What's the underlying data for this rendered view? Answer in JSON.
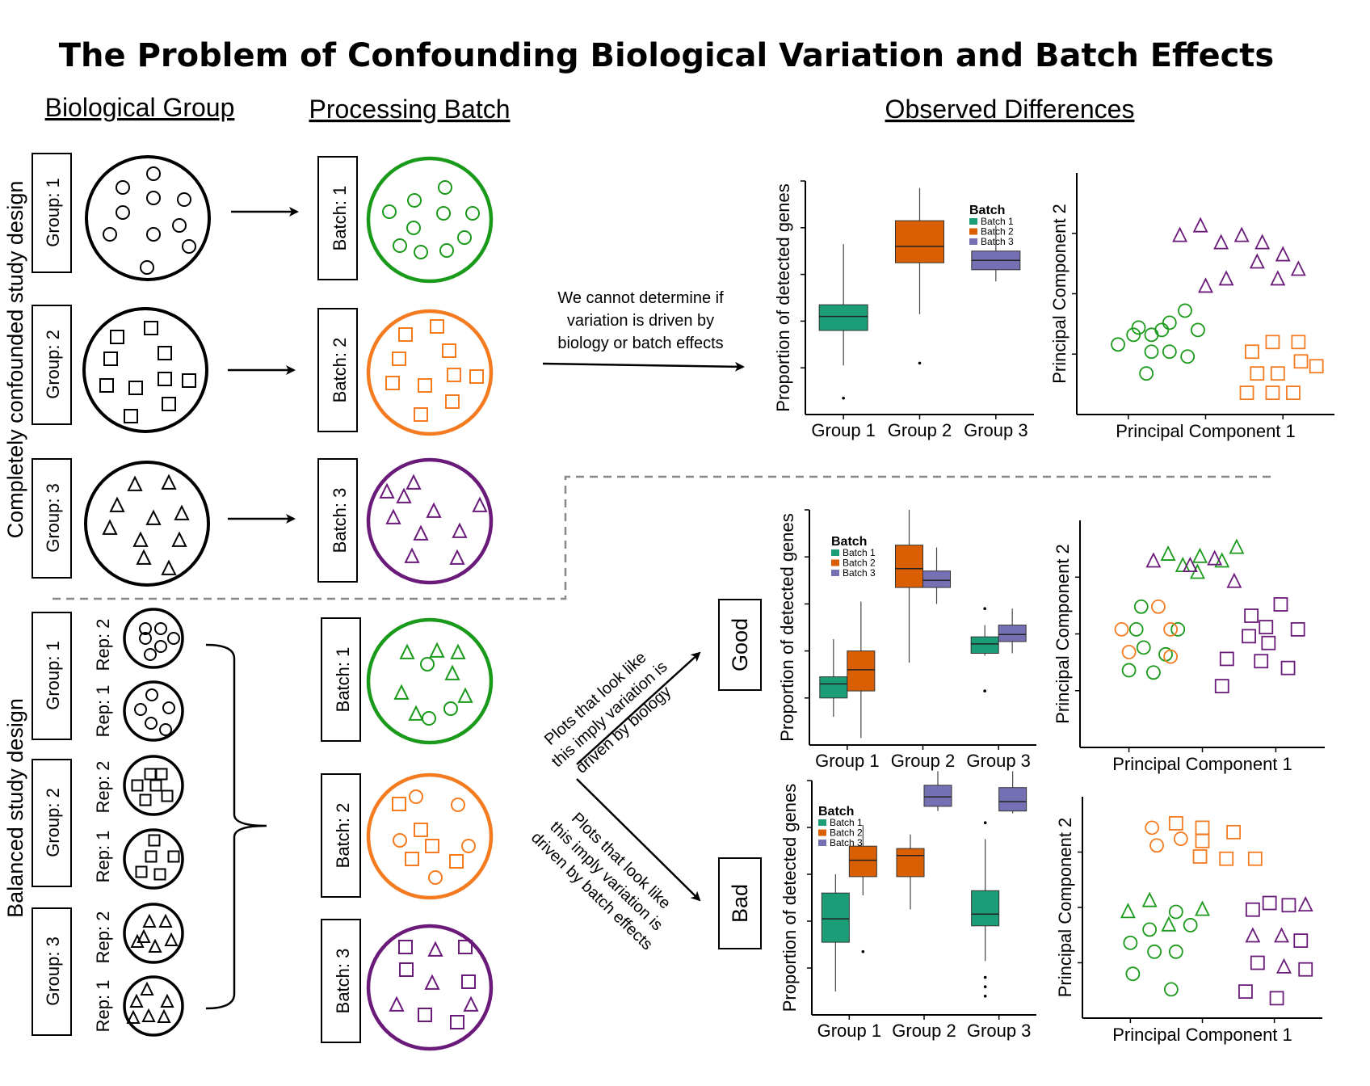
{
  "title": "The Problem of Confounding Biological Variation and Batch Effects",
  "headers": {
    "biological_group": "Biological Group",
    "processing_batch": "Processing Batch",
    "observed_differences": "Observed Differences"
  },
  "designs": {
    "confounded": "Completely confounded study design",
    "balanced": "Balanced study design"
  },
  "group_labels": [
    "Group: 1",
    "Group: 2",
    "Group: 3"
  ],
  "batch_labels": [
    "Batch: 1",
    "Batch: 2",
    "Batch: 3"
  ],
  "rep_labels": [
    "Rep: 2",
    "Rep: 1",
    "Rep: 2",
    "Rep: 1",
    "Rep: 2",
    "Rep: 1"
  ],
  "notes": {
    "confounded_line1": "We cannot determine if",
    "confounded_line2": "variation is driven by",
    "confounded_line3": "biology or batch effects",
    "good_line1": "Plots that look like",
    "good_line2": "this imply variation is",
    "good_line3": "driven by biology",
    "bad_line1": "Plots that look like",
    "bad_line2": "this imply variation is",
    "bad_line3": "driven by batch effects"
  },
  "outcomes": {
    "good": "Good",
    "bad": "Bad"
  },
  "colors": {
    "batch1": "#1b9e77",
    "batch2": "#d95f02",
    "batch3": "#7570b3",
    "green": "#1a9a1a",
    "orange": "#f47b20",
    "purple": "#6a1b7a"
  },
  "chart_data": [
    {
      "type": "box",
      "panel": "confounded",
      "ylabel": "Proportion of detected genes",
      "categories": [
        "Group 1",
        "Group 2",
        "Group 3"
      ],
      "legend_title": "Batch",
      "legend": [
        "Batch 1",
        "Batch 2",
        "Batch 3"
      ],
      "series": [
        {
          "name": "Batch 1",
          "group": "Group 1",
          "min": 0.21,
          "q1": 0.36,
          "median": 0.42,
          "q3": 0.47,
          "max": 0.73,
          "outliers": [
            0.07
          ]
        },
        {
          "name": "Batch 2",
          "group": "Group 2",
          "min": 0.43,
          "q1": 0.65,
          "median": 0.72,
          "q3": 0.83,
          "max": 0.97,
          "outliers": [
            0.22
          ]
        },
        {
          "name": "Batch 3",
          "group": "Group 3",
          "min": 0.57,
          "q1": 0.62,
          "median": 0.66,
          "q3": 0.7,
          "max": 0.81,
          "outliers": []
        }
      ]
    },
    {
      "type": "scatter",
      "panel": "confounded",
      "xlabel": "Principal Component 1",
      "ylabel": "Principal Component 2",
      "series": [
        {
          "name": "Batch 1",
          "shape": "circle",
          "color": "green",
          "points": [
            [
              0.24,
              0.36
            ],
            [
              0.29,
              0.33
            ],
            [
              0.33,
              0.35
            ],
            [
              0.36,
              0.38
            ],
            [
              0.42,
              0.43
            ],
            [
              0.47,
              0.35
            ],
            [
              0.22,
              0.33
            ],
            [
              0.29,
              0.26
            ],
            [
              0.36,
              0.26
            ],
            [
              0.43,
              0.24
            ],
            [
              0.16,
              0.29
            ],
            [
              0.27,
              0.17
            ]
          ]
        },
        {
          "name": "Batch 2",
          "shape": "square",
          "color": "orange",
          "points": [
            [
              0.68,
              0.26
            ],
            [
              0.76,
              0.3
            ],
            [
              0.86,
              0.3
            ],
            [
              0.7,
              0.17
            ],
            [
              0.78,
              0.17
            ],
            [
              0.87,
              0.22
            ],
            [
              0.93,
              0.2
            ],
            [
              0.66,
              0.09
            ],
            [
              0.76,
              0.09
            ],
            [
              0.84,
              0.09
            ]
          ]
        },
        {
          "name": "Batch 3",
          "shape": "triangle",
          "color": "purple",
          "points": [
            [
              0.4,
              0.74
            ],
            [
              0.48,
              0.78
            ],
            [
              0.56,
              0.71
            ],
            [
              0.64,
              0.74
            ],
            [
              0.72,
              0.71
            ],
            [
              0.7,
              0.63
            ],
            [
              0.8,
              0.66
            ],
            [
              0.86,
              0.6
            ],
            [
              0.78,
              0.56
            ],
            [
              0.58,
              0.56
            ],
            [
              0.5,
              0.53
            ]
          ]
        }
      ]
    },
    {
      "type": "box",
      "panel": "good",
      "ylabel": "Proportion of detected genes",
      "categories": [
        "Group 1",
        "Group 2",
        "Group 3"
      ],
      "legend_title": "Batch",
      "legend": [
        "Batch 1",
        "Batch 2",
        "Batch 3"
      ],
      "series": [
        {
          "name": "Batch 1",
          "group": "Group 1",
          "min": 0.12,
          "q1": 0.2,
          "median": 0.26,
          "q3": 0.29,
          "max": 0.45
        },
        {
          "name": "Batch 2",
          "group": "Group 1",
          "min": 0.03,
          "q1": 0.23,
          "median": 0.32,
          "q3": 0.4,
          "max": 0.61
        },
        {
          "name": "Batch 2",
          "group": "Group 2",
          "min": 0.35,
          "q1": 0.67,
          "median": 0.75,
          "q3": 0.85,
          "max": 1.0
        },
        {
          "name": "Batch 3",
          "group": "Group 2",
          "min": 0.6,
          "q1": 0.67,
          "median": 0.7,
          "q3": 0.74,
          "max": 0.84
        },
        {
          "name": "Batch 1",
          "group": "Group 3",
          "min": 0.38,
          "q1": 0.39,
          "median": 0.43,
          "q3": 0.46,
          "max": 0.51,
          "outliers": [
            0.23,
            0.58
          ]
        },
        {
          "name": "Batch 3",
          "group": "Group 3",
          "min": 0.39,
          "q1": 0.44,
          "median": 0.47,
          "q3": 0.51,
          "max": 0.58
        }
      ]
    },
    {
      "type": "scatter",
      "panel": "good",
      "xlabel": "Principal Component 1",
      "ylabel": "Principal Component 2",
      "series": [
        {
          "name": "Batch 1",
          "shape": "mixed",
          "color": "green",
          "points": [
            [
              0.36,
              0.85
            ],
            [
              0.42,
              0.8
            ],
            [
              0.49,
              0.84
            ],
            [
              0.58,
              0.82
            ],
            [
              0.64,
              0.88
            ],
            [
              0.48,
              0.77
            ],
            [
              0.25,
              0.62
            ],
            [
              0.23,
              0.52
            ],
            [
              0.4,
              0.52
            ],
            [
              0.26,
              0.44
            ],
            [
              0.35,
              0.41
            ],
            [
              0.2,
              0.34
            ],
            [
              0.3,
              0.33
            ]
          ]
        },
        {
          "name": "Batch 2",
          "shape": "circle",
          "color": "orange",
          "points": [
            [
              0.17,
              0.52
            ],
            [
              0.32,
              0.62
            ],
            [
              0.37,
              0.52
            ],
            [
              0.2,
              0.42
            ],
            [
              0.37,
              0.4
            ]
          ]
        },
        {
          "name": "Batch 3",
          "shape": "mixed",
          "color": "purple",
          "points": [
            [
              0.3,
              0.82
            ],
            [
              0.55,
              0.83
            ],
            [
              0.45,
              0.8
            ],
            [
              0.63,
              0.73
            ],
            [
              0.7,
              0.58
            ],
            [
              0.82,
              0.63
            ],
            [
              0.76,
              0.53
            ],
            [
              0.89,
              0.52
            ],
            [
              0.69,
              0.49
            ],
            [
              0.77,
              0.46
            ],
            [
              0.6,
              0.39
            ],
            [
              0.74,
              0.38
            ],
            [
              0.85,
              0.35
            ],
            [
              0.58,
              0.27
            ]
          ]
        }
      ]
    },
    {
      "type": "box",
      "panel": "bad",
      "ylabel": "Proportion of detected genes",
      "categories": [
        "Group 1",
        "Group 2",
        "Group 3"
      ],
      "legend_title": "Batch",
      "legend": [
        "Batch 1",
        "Batch 2",
        "Batch 3"
      ],
      "series": [
        {
          "name": "Batch 1",
          "group": "Group 1",
          "min": 0.1,
          "q1": 0.31,
          "median": 0.41,
          "q3": 0.52,
          "max": 0.6
        },
        {
          "name": "Batch 2",
          "group": "Group 1",
          "min": 0.51,
          "q1": 0.59,
          "median": 0.66,
          "q3": 0.72,
          "max": 0.81,
          "outliers": [
            0.27
          ]
        },
        {
          "name": "Batch 2",
          "group": "Group 2",
          "min": 0.45,
          "q1": 0.59,
          "median": 0.68,
          "q3": 0.71,
          "max": 0.77
        },
        {
          "name": "Batch 3",
          "group": "Group 2",
          "min": 0.87,
          "q1": 0.89,
          "median": 0.93,
          "q3": 0.98,
          "max": 1.04
        },
        {
          "name": "Batch 1",
          "group": "Group 3",
          "min": 0.23,
          "q1": 0.38,
          "median": 0.43,
          "q3": 0.53,
          "max": 0.75,
          "outliers": [
            0.08,
            0.12,
            0.16,
            0.82
          ]
        },
        {
          "name": "Batch 3",
          "group": "Group 3",
          "min": 0.86,
          "q1": 0.87,
          "median": 0.91,
          "q3": 0.97,
          "max": 1.04
        }
      ]
    },
    {
      "type": "scatter",
      "panel": "bad",
      "xlabel": "Principal Component 1",
      "ylabel": "Principal Component 2",
      "series": [
        {
          "name": "Batch 1",
          "shape": "mixed",
          "color": "green",
          "points": [
            [
              0.19,
              0.48
            ],
            [
              0.28,
              0.53
            ],
            [
              0.39,
              0.48
            ],
            [
              0.5,
              0.49
            ],
            [
              0.28,
              0.4
            ],
            [
              0.36,
              0.42
            ],
            [
              0.45,
              0.42
            ],
            [
              0.2,
              0.34
            ],
            [
              0.3,
              0.3
            ],
            [
              0.39,
              0.3
            ],
            [
              0.21,
              0.2
            ],
            [
              0.37,
              0.13
            ]
          ]
        },
        {
          "name": "Batch 2",
          "shape": "mixed",
          "color": "orange",
          "points": [
            [
              0.29,
              0.86
            ],
            [
              0.39,
              0.88
            ],
            [
              0.5,
              0.86
            ],
            [
              0.63,
              0.84
            ],
            [
              0.31,
              0.78
            ],
            [
              0.41,
              0.81
            ],
            [
              0.5,
              0.8
            ],
            [
              0.49,
              0.73
            ],
            [
              0.6,
              0.72
            ],
            [
              0.72,
              0.72
            ]
          ]
        },
        {
          "name": "Batch 3",
          "shape": "mixed",
          "color": "purple",
          "points": [
            [
              0.71,
              0.49
            ],
            [
              0.78,
              0.52
            ],
            [
              0.86,
              0.51
            ],
            [
              0.93,
              0.51
            ],
            [
              0.71,
              0.37
            ],
            [
              0.83,
              0.37
            ],
            [
              0.91,
              0.35
            ],
            [
              0.73,
              0.25
            ],
            [
              0.84,
              0.23
            ],
            [
              0.93,
              0.22
            ],
            [
              0.68,
              0.12
            ],
            [
              0.81,
              0.09
            ]
          ]
        }
      ]
    }
  ]
}
